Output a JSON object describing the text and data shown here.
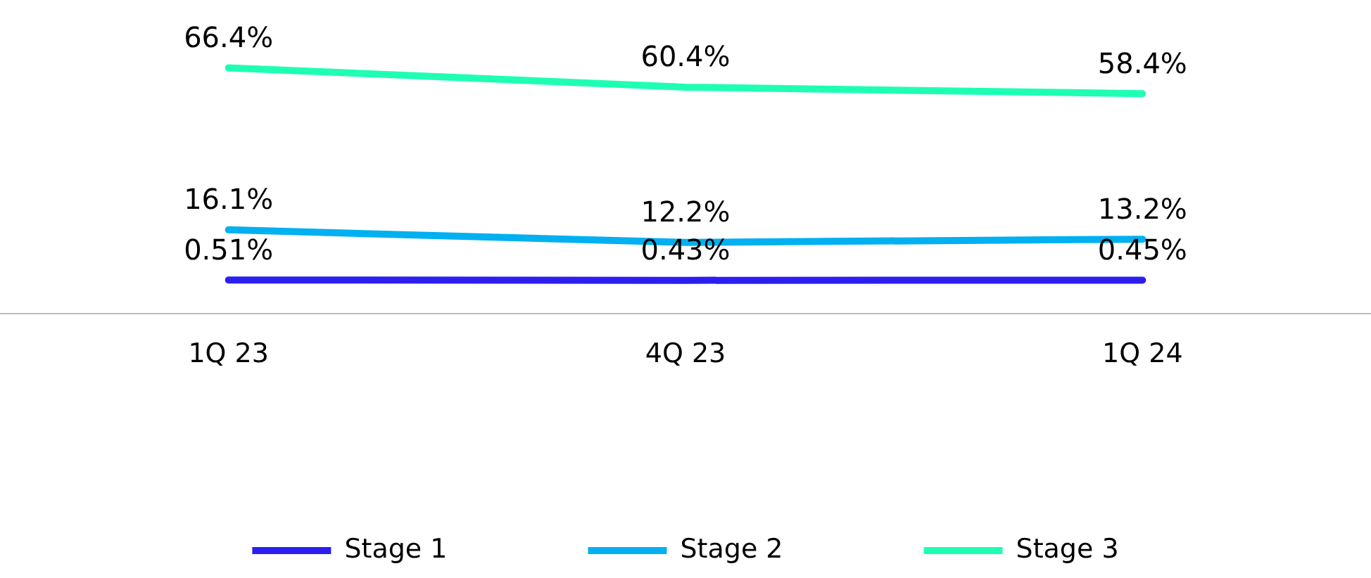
{
  "chart_data": {
    "type": "line",
    "categories": [
      "1Q 23",
      "4Q 23",
      "1Q 24"
    ],
    "series": [
      {
        "name": "Stage 1",
        "color": "#2b1ff0",
        "values": [
          0.51,
          0.43,
          0.45
        ],
        "value_labels": [
          "0.51%",
          "0.43%",
          "0.45%"
        ]
      },
      {
        "name": "Stage 2",
        "color": "#00b0f0",
        "values": [
          16.1,
          12.2,
          13.2
        ],
        "value_labels": [
          "16.1%",
          "12.2%",
          "13.2%"
        ]
      },
      {
        "name": "Stage 3",
        "color": "#1effb4",
        "values": [
          66.4,
          60.4,
          58.4
        ],
        "value_labels": [
          "66.4%",
          "60.4%",
          "58.4%"
        ]
      }
    ],
    "legend": "bottom",
    "marker": "none",
    "line_style": "solid",
    "grid": false,
    "tick_labels": "x"
  }
}
